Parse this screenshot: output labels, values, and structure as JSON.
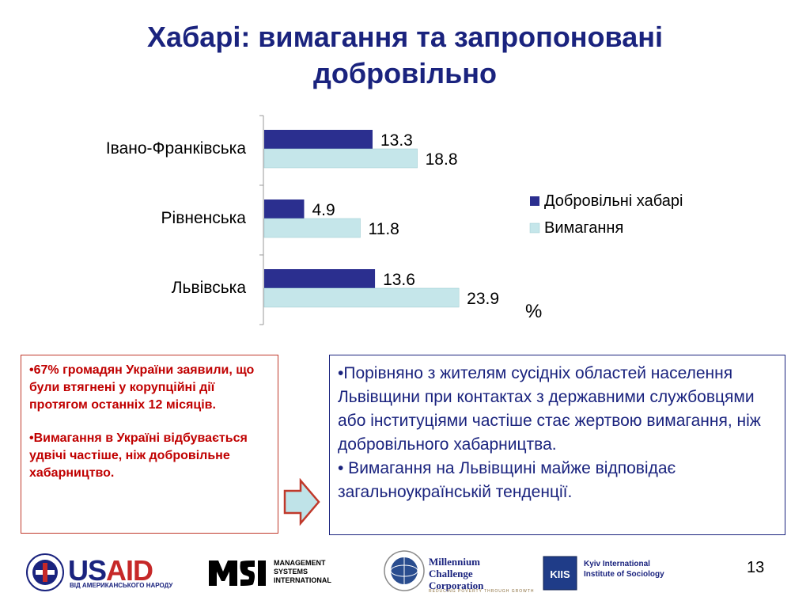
{
  "slide": {
    "title_line1": "Хабарі: вимагання та запропоновані",
    "title_line2": "добровільно",
    "unit_label": "%",
    "page_number": "13"
  },
  "chart_data": {
    "type": "bar",
    "orientation": "horizontal",
    "categories": [
      "Івано-Франківська",
      "Рівненська",
      "Львівська"
    ],
    "series": [
      {
        "name": "Добровільні хабарі",
        "color": "#2b2f8f",
        "values": [
          13.3,
          4.9,
          13.6
        ],
        "labels": [
          "13.3",
          "4.9",
          "13.6"
        ]
      },
      {
        "name": "Вимагання",
        "color": "#c5e6ea",
        "values": [
          18.8,
          11.8,
          23.9
        ],
        "labels": [
          "18.8",
          "11.8",
          "23.9"
        ]
      }
    ],
    "legend_position": "right",
    "grid": false
  },
  "left_box": {
    "p1": "•67% громадян України заявили, що були втягнені у корупційні дії  протягом останніх 12 місяців.",
    "p2": "•Вимагання в Україні відбувається удвічі частіше, ніж добровільне хабарництво."
  },
  "right_box": {
    "p1": "•Порівняно з жителям сусідніх областей населення Львівщини  при контактах з державними службовцями або інституціями частіше стає жертвою вимагання, ніж добровільного хабарництва.",
    "p2": "• Вимагання на Львівщині майже відповідає загальноукраїнській тенденції."
  },
  "footer": {
    "usaid_word_us": "US",
    "usaid_word_aid": "AID",
    "usaid_sub": "ВІД АМЕРИКАНСЬКОГО НАРОДУ",
    "msi_line1": "MANAGEMENT",
    "msi_line2": "SYSTEMS",
    "msi_line3": "INTERNATIONAL",
    "mcc_line1": "Millennium",
    "mcc_line2": "Challenge",
    "mcc_line3": "Corporation",
    "mcc_tag": "REDUCING POVERTY THROUGH GROWTH",
    "kiis_line1": "Kyiv International",
    "kiis_line2": "Institute of Sociology",
    "kiis_mark": "KIIS"
  },
  "colors": {
    "title": "#1a237e",
    "left_box_border": "#c0392b",
    "left_box_text": "#c00000",
    "right_box_border": "#1a237e",
    "arrow_fill": "#bfe3e8",
    "arrow_stroke": "#c0392b"
  },
  "icons": [
    "usaid-seal-icon",
    "msi-logo-icon",
    "mcc-globe-icon",
    "kiis-logo-icon",
    "right-arrow-icon"
  ]
}
